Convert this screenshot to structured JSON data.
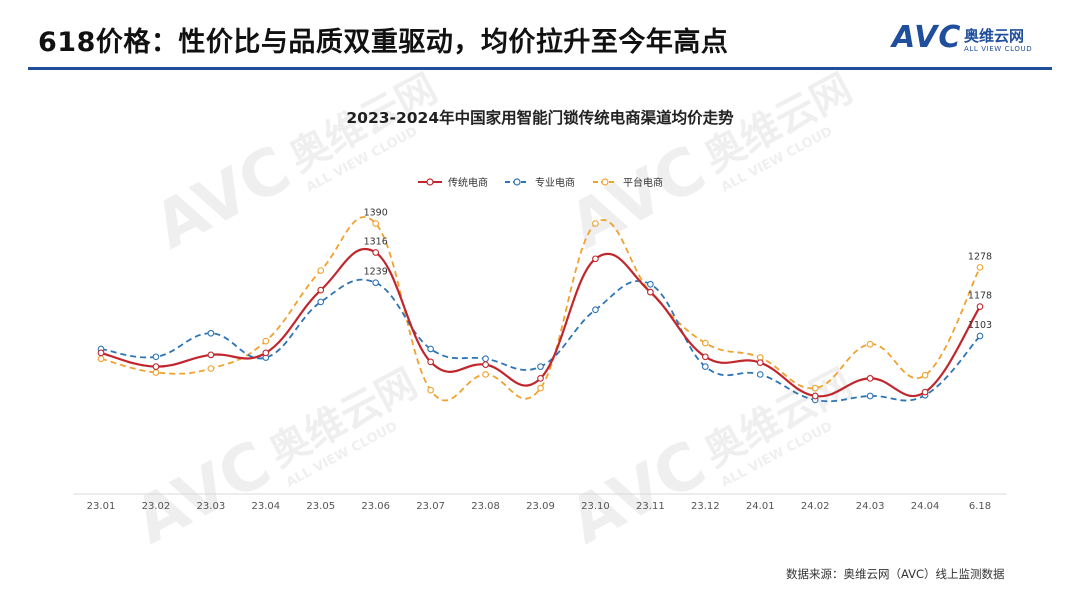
{
  "header": {
    "title": "618价格：性价比与品质双重驱动，均价拉升至今年高点",
    "logo_mark": "AVC",
    "logo_cn": "奥维云网",
    "logo_en": "ALL VIEW CLOUD"
  },
  "watermark": {
    "mark": "AVC",
    "cn": "奥维云网",
    "en": "ALL VIEW CLOUD"
  },
  "footer": {
    "source": "数据来源：奥维云网（AVC）线上监测数据"
  },
  "colors": {
    "accent": "#1f4e9c",
    "traditional": "#c0272d",
    "professional": "#2e75b6",
    "platform": "#f0a22e"
  },
  "chart_data": {
    "type": "line",
    "title": "2023-2024年中国家用智能门锁传统电商渠道均价走势",
    "categories": [
      "23.01",
      "23.02",
      "23.03",
      "23.04",
      "23.05",
      "23.06",
      "23.07",
      "23.08",
      "23.09",
      "23.10",
      "23.11",
      "23.12",
      "24.01",
      "24.02",
      "24.03",
      "24.04",
      "6.18"
    ],
    "ylim": [
      700,
      1450
    ],
    "grid": false,
    "legend": "top-center",
    "series": [
      {
        "name": "传统电商",
        "color": "#c0272d",
        "dash": "solid",
        "values": [
          1060,
          1025,
          1055,
          1060,
          1220,
          1316,
          1037,
          1030,
          995,
          1300,
          1215,
          1050,
          1035,
          950,
          995,
          960,
          1178
        ],
        "labels": {
          "5": "1316",
          "16": "1178"
        }
      },
      {
        "name": "专业电商",
        "color": "#2e75b6",
        "dash": "dashed",
        "values": [
          1070,
          1050,
          1110,
          1048,
          1190,
          1239,
          1070,
          1045,
          1025,
          1170,
          1235,
          1025,
          1005,
          940,
          950,
          952,
          1103
        ],
        "labels": {
          "5": "1239",
          "16": "1103"
        }
      },
      {
        "name": "平台电商",
        "color": "#f0a22e",
        "dash": "dashed",
        "values": [
          1045,
          1010,
          1020,
          1090,
          1270,
          1390,
          965,
          1005,
          970,
          1390,
          1215,
          1085,
          1048,
          970,
          1082,
          1003,
          1278
        ],
        "labels": {
          "5": "1390",
          "16": "1278"
        }
      }
    ]
  }
}
